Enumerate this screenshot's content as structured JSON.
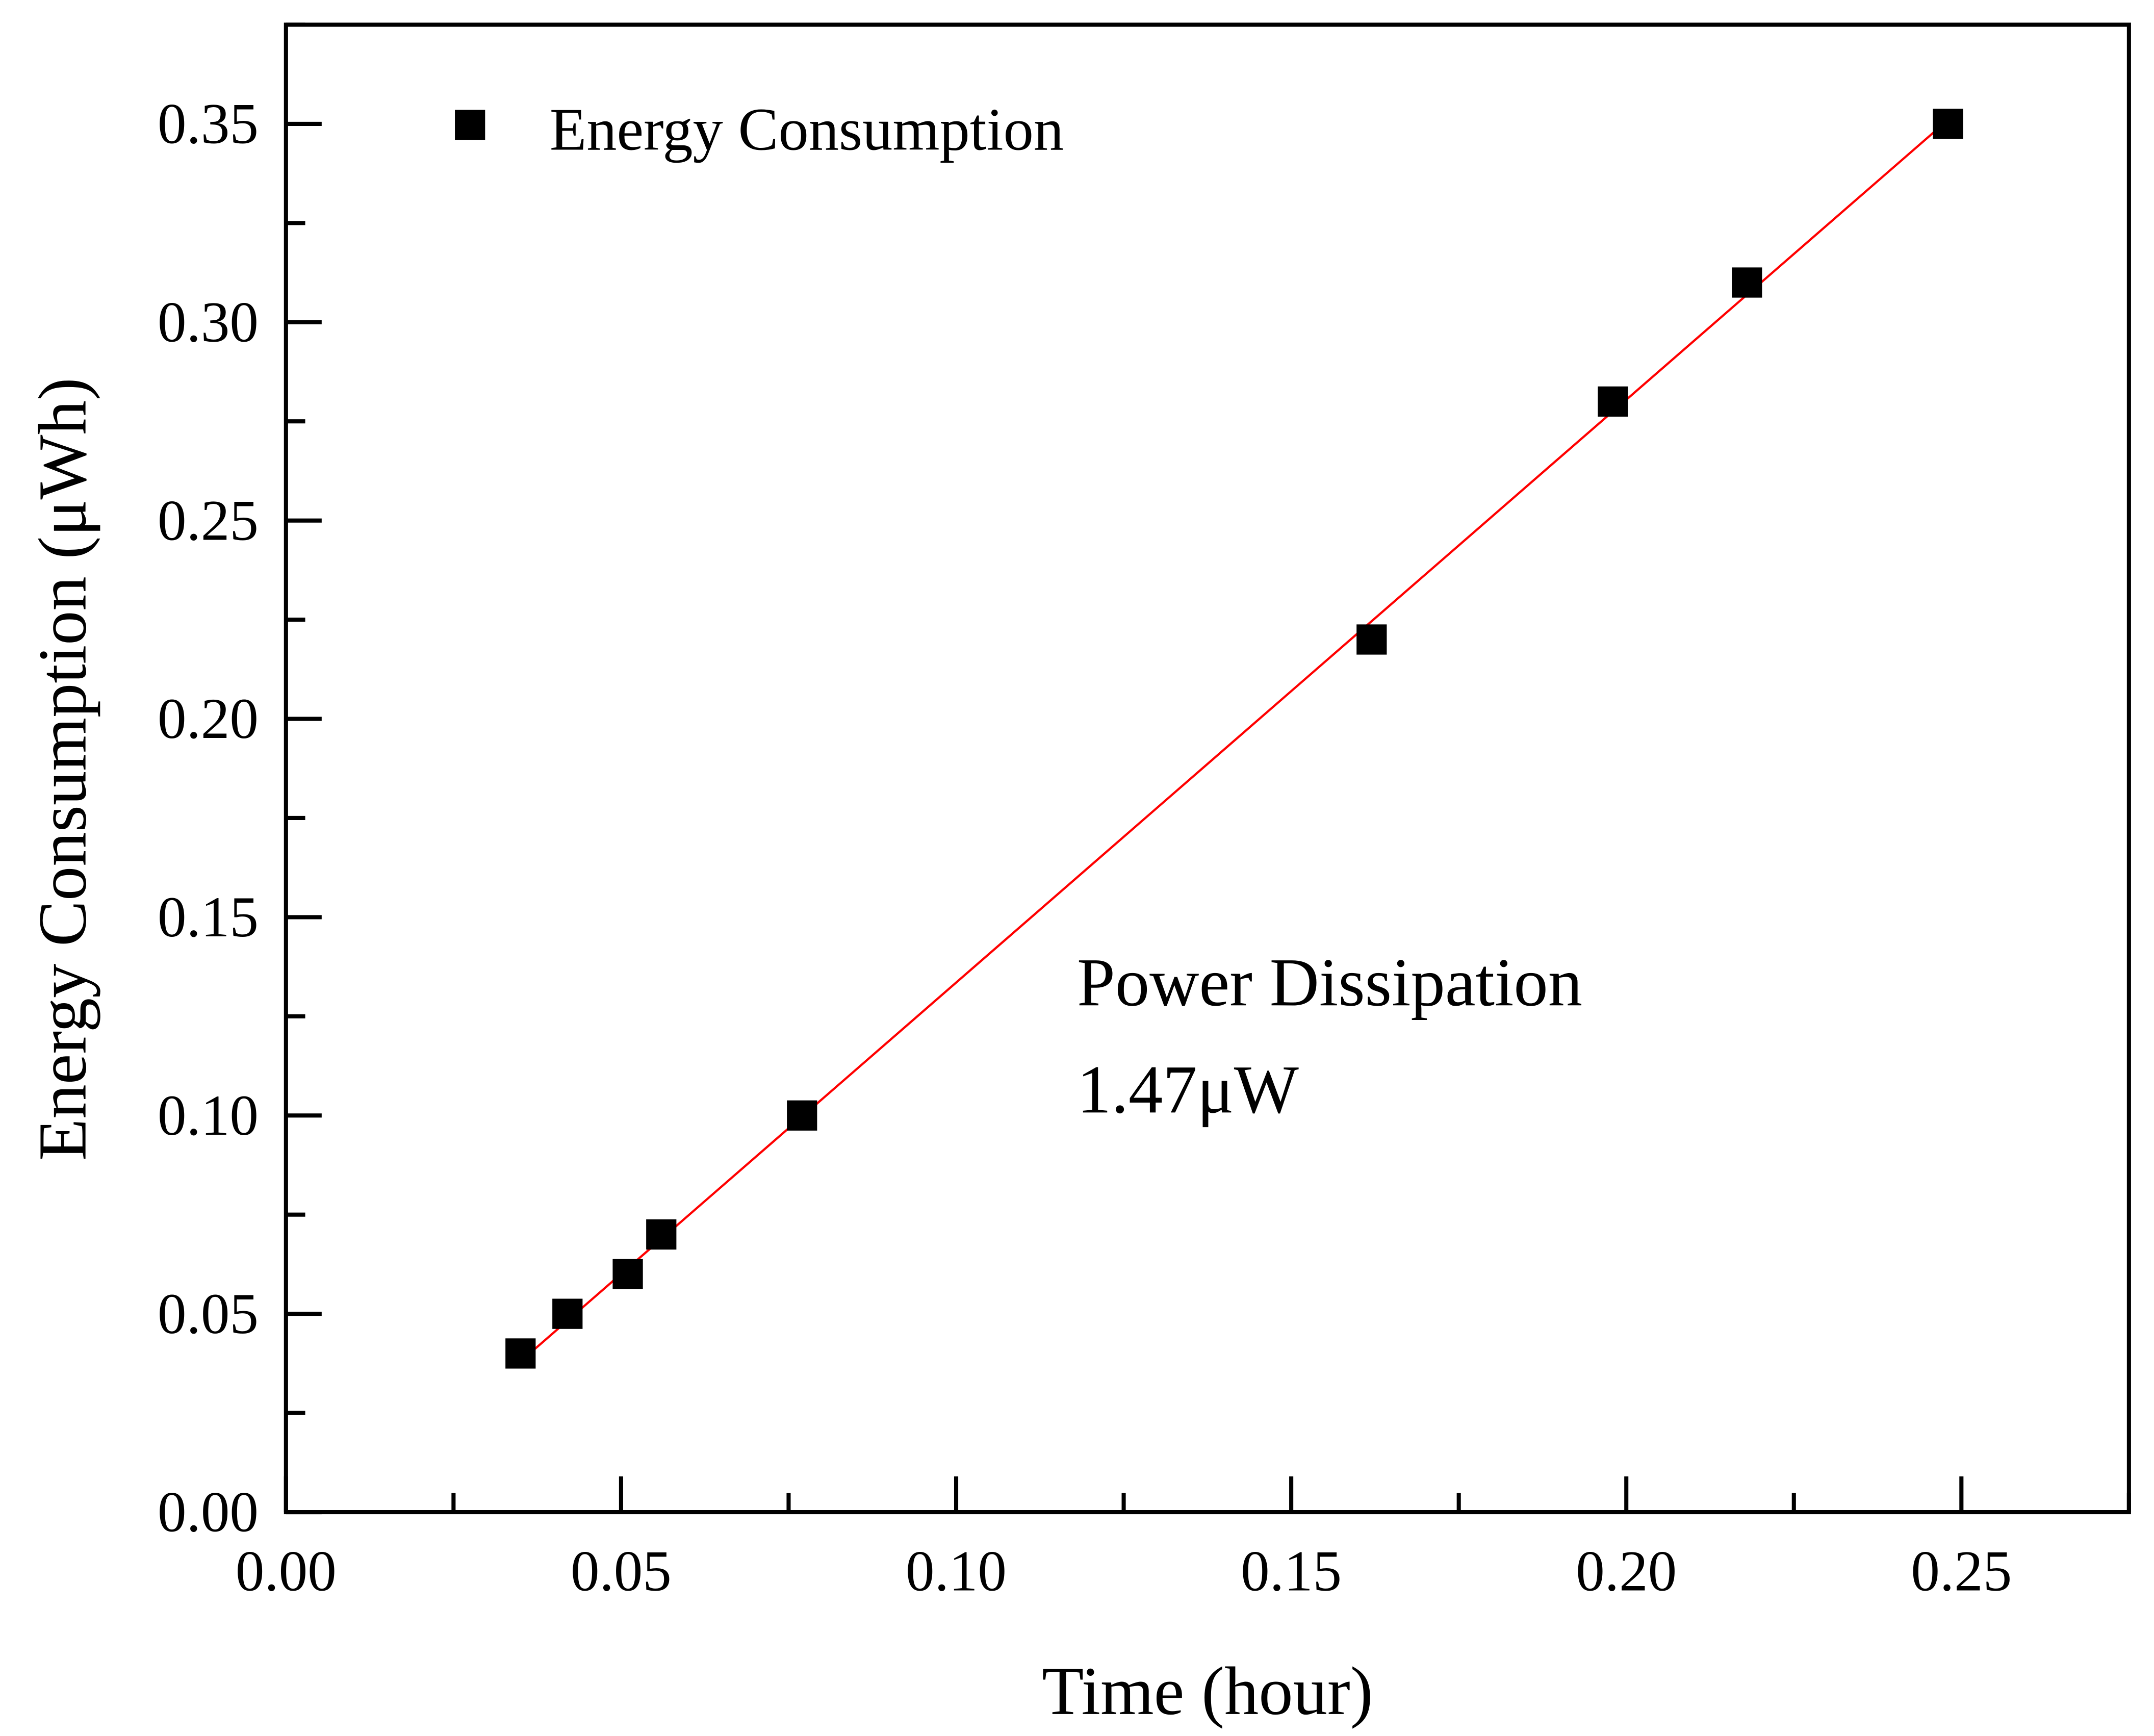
{
  "chart_data": {
    "type": "scatter",
    "title": "",
    "xlabel": "Time (hour)",
    "ylabel": "Energy Consumption (μWh)",
    "xlim": [
      0,
      0.275
    ],
    "ylim": [
      0,
      0.375
    ],
    "xticks": [
      "0.00",
      "0.05",
      "0.10",
      "0.15",
      "0.20",
      "0.25"
    ],
    "yticks": [
      "0.00",
      "0.05",
      "0.10",
      "0.15",
      "0.20",
      "0.25",
      "0.30",
      "0.35"
    ],
    "grid": false,
    "legend": {
      "position": "top-left",
      "entries": [
        "Energy Consumption"
      ]
    },
    "series": [
      {
        "name": "Energy Consumption",
        "marker": "square",
        "color": "#000000",
        "x": [
          0.035,
          0.042,
          0.051,
          0.056,
          0.077,
          0.162,
          0.198,
          0.218,
          0.248
        ],
        "y": [
          0.04,
          0.05,
          0.06,
          0.07,
          0.1,
          0.22,
          0.28,
          0.31,
          0.35
        ]
      }
    ],
    "fit_line": {
      "color": "#ff0000",
      "x": [
        0.035,
        0.248
      ],
      "y": [
        0.038,
        0.351
      ]
    },
    "annotations": [
      "Power Dissipation",
      "1.47μW"
    ]
  }
}
